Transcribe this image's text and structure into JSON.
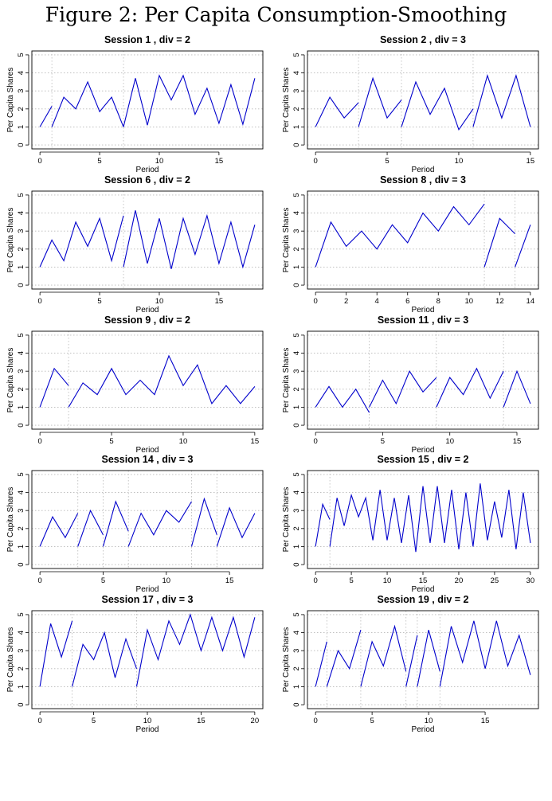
{
  "figure": {
    "title": "Figure 2: Per Capita Consumption-Smoothing"
  },
  "style": {
    "line_color": "#0000cc",
    "grid_color": "#b8b8b8"
  },
  "chart_data": [
    {
      "type": "line",
      "title": "Session 1 , div = 2",
      "xlabel": "Period",
      "ylabel": "Per Capita Shares",
      "xlim": [
        0,
        18
      ],
      "ylim": [
        0,
        5
      ],
      "xticks": [
        0,
        5,
        10,
        15
      ],
      "yticks": [
        0,
        1,
        2,
        3,
        4,
        5
      ],
      "grid_x": [
        1,
        7
      ],
      "grid": true,
      "segments": [
        [
          [
            0,
            1.0
          ],
          [
            1,
            2.15
          ]
        ],
        [
          [
            1,
            1.0
          ],
          [
            2,
            2.65
          ],
          [
            3,
            2.0
          ],
          [
            4,
            3.5
          ],
          [
            5,
            1.85
          ],
          [
            6,
            2.65
          ],
          [
            7,
            1.0
          ]
        ],
        [
          [
            7,
            1.0
          ],
          [
            8,
            3.7
          ],
          [
            9,
            1.1
          ],
          [
            10,
            3.85
          ],
          [
            11,
            2.5
          ],
          [
            12,
            3.85
          ],
          [
            13,
            1.7
          ],
          [
            14,
            3.15
          ],
          [
            15,
            1.2
          ],
          [
            16,
            3.35
          ],
          [
            17,
            1.15
          ],
          [
            18,
            3.7
          ]
        ]
      ]
    },
    {
      "type": "line",
      "title": "Session 2 , div = 3",
      "xlabel": "Period",
      "ylabel": "Per Capita Shares",
      "xlim": [
        0,
        15
      ],
      "ylim": [
        0,
        5
      ],
      "xticks": [
        0,
        5,
        10,
        15
      ],
      "yticks": [
        0,
        1,
        2,
        3,
        4,
        5
      ],
      "grid_x": [
        3,
        6,
        11
      ],
      "grid": true,
      "segments": [
        [
          [
            0,
            1.0
          ],
          [
            1,
            2.65
          ],
          [
            2,
            1.5
          ],
          [
            3,
            2.35
          ]
        ],
        [
          [
            3,
            1.0
          ],
          [
            4,
            3.7
          ],
          [
            5,
            1.5
          ],
          [
            6,
            2.5
          ]
        ],
        [
          [
            6,
            1.0
          ],
          [
            7,
            3.5
          ],
          [
            8,
            1.7
          ],
          [
            9,
            3.15
          ],
          [
            10,
            0.85
          ],
          [
            11,
            2.0
          ]
        ],
        [
          [
            11,
            1.0
          ],
          [
            12,
            3.85
          ],
          [
            13,
            1.5
          ],
          [
            14,
            3.85
          ],
          [
            15,
            1.0
          ]
        ]
      ]
    },
    {
      "type": "line",
      "title": "Session 6 , div = 2",
      "xlabel": "Period",
      "ylabel": "Per Capita Shares",
      "xlim": [
        0,
        18
      ],
      "ylim": [
        0,
        5
      ],
      "xticks": [
        0,
        5,
        10,
        15
      ],
      "yticks": [
        0,
        1,
        2,
        3,
        4,
        5
      ],
      "grid_x": [
        7
      ],
      "grid": true,
      "segments": [
        [
          [
            0,
            1.0
          ],
          [
            1,
            2.5
          ],
          [
            2,
            1.35
          ],
          [
            3,
            3.5
          ],
          [
            4,
            2.15
          ],
          [
            5,
            3.7
          ],
          [
            6,
            1.35
          ],
          [
            7,
            3.85
          ]
        ],
        [
          [
            7,
            1.0
          ],
          [
            8,
            4.15
          ],
          [
            9,
            1.2
          ],
          [
            10,
            3.7
          ],
          [
            11,
            0.9
          ],
          [
            12,
            3.7
          ],
          [
            13,
            1.7
          ],
          [
            14,
            3.85
          ],
          [
            15,
            1.2
          ],
          [
            16,
            3.5
          ],
          [
            17,
            1.0
          ],
          [
            18,
            3.35
          ]
        ]
      ]
    },
    {
      "type": "line",
      "title": "Session 8 , div = 3",
      "xlabel": "Period",
      "ylabel": "Per Capita Shares",
      "xlim": [
        0,
        14
      ],
      "ylim": [
        0,
        5
      ],
      "xticks": [
        0,
        2,
        4,
        6,
        8,
        10,
        12,
        14
      ],
      "yticks": [
        0,
        1,
        2,
        3,
        4,
        5
      ],
      "grid_x": [
        11,
        13
      ],
      "grid": true,
      "segments": [
        [
          [
            0,
            1.0
          ],
          [
            1,
            3.5
          ],
          [
            2,
            2.15
          ],
          [
            3,
            3.0
          ],
          [
            4,
            2.0
          ],
          [
            5,
            3.35
          ],
          [
            6,
            2.35
          ],
          [
            7,
            4.0
          ],
          [
            8,
            3.0
          ],
          [
            9,
            4.35
          ],
          [
            10,
            3.35
          ],
          [
            11,
            4.5
          ]
        ],
        [
          [
            11,
            1.0
          ],
          [
            12,
            3.7
          ],
          [
            13,
            2.85
          ]
        ],
        [
          [
            13,
            1.0
          ],
          [
            14,
            3.35
          ]
        ]
      ]
    },
    {
      "type": "line",
      "title": "Session 9 , div = 2",
      "xlabel": "Period",
      "ylabel": "Per Capita Shares",
      "xlim": [
        0,
        15
      ],
      "ylim": [
        0,
        5
      ],
      "xticks": [
        0,
        5,
        10,
        15
      ],
      "yticks": [
        0,
        1,
        2,
        3,
        4,
        5
      ],
      "grid_x": [
        2
      ],
      "grid": true,
      "segments": [
        [
          [
            0,
            1.0
          ],
          [
            1,
            3.15
          ],
          [
            2,
            2.2
          ]
        ],
        [
          [
            2,
            1.0
          ],
          [
            3,
            2.35
          ],
          [
            4,
            1.7
          ],
          [
            5,
            3.15
          ],
          [
            6,
            1.7
          ],
          [
            7,
            2.5
          ],
          [
            8,
            1.7
          ],
          [
            9,
            3.85
          ],
          [
            10,
            2.2
          ],
          [
            11,
            3.35
          ],
          [
            12,
            1.2
          ],
          [
            13,
            2.2
          ],
          [
            14,
            1.2
          ],
          [
            15,
            2.15
          ]
        ]
      ]
    },
    {
      "type": "line",
      "title": "Session 11 , div = 3",
      "xlabel": "Period",
      "ylabel": "Per Capita Shares",
      "xlim": [
        0,
        16
      ],
      "ylim": [
        0,
        5
      ],
      "xticks": [
        0,
        5,
        10,
        15
      ],
      "yticks": [
        0,
        1,
        2,
        3,
        4,
        5
      ],
      "grid_x": [
        4,
        9,
        14
      ],
      "grid": true,
      "segments": [
        [
          [
            0,
            1.0
          ],
          [
            1,
            2.15
          ],
          [
            2,
            1.0
          ],
          [
            3,
            2.0
          ],
          [
            4,
            0.7
          ]
        ],
        [
          [
            4,
            1.0
          ],
          [
            5,
            2.5
          ],
          [
            6,
            1.2
          ],
          [
            7,
            3.0
          ],
          [
            8,
            1.85
          ],
          [
            9,
            2.65
          ]
        ],
        [
          [
            9,
            1.0
          ],
          [
            10,
            2.65
          ],
          [
            11,
            1.7
          ],
          [
            12,
            3.15
          ],
          [
            13,
            1.5
          ],
          [
            14,
            3.0
          ]
        ],
        [
          [
            14,
            1.0
          ],
          [
            15,
            3.0
          ],
          [
            16,
            1.2
          ]
        ]
      ]
    },
    {
      "type": "line",
      "title": "Session 14 , div = 3",
      "xlabel": "Period",
      "ylabel": "Per Capita Shares",
      "xlim": [
        0,
        17
      ],
      "ylim": [
        0,
        5
      ],
      "xticks": [
        0,
        5,
        10,
        15
      ],
      "yticks": [
        0,
        1,
        2,
        3,
        4,
        5
      ],
      "grid_x": [
        3,
        5,
        7,
        12,
        14
      ],
      "grid": true,
      "segments": [
        [
          [
            0,
            1.0
          ],
          [
            1,
            2.65
          ],
          [
            2,
            1.5
          ],
          [
            3,
            2.85
          ]
        ],
        [
          [
            3,
            1.0
          ],
          [
            4,
            3.0
          ],
          [
            5,
            1.65
          ]
        ],
        [
          [
            5,
            1.0
          ],
          [
            6,
            3.5
          ],
          [
            7,
            1.85
          ]
        ],
        [
          [
            7,
            1.0
          ],
          [
            8,
            2.85
          ],
          [
            9,
            1.65
          ],
          [
            10,
            3.0
          ],
          [
            11,
            2.35
          ],
          [
            12,
            3.5
          ]
        ],
        [
          [
            12,
            1.0
          ],
          [
            13,
            3.65
          ],
          [
            14,
            1.65
          ]
        ],
        [
          [
            14,
            1.0
          ],
          [
            15,
            3.15
          ],
          [
            16,
            1.5
          ],
          [
            17,
            2.85
          ]
        ]
      ]
    },
    {
      "type": "line",
      "title": "Session 15 , div = 2",
      "xlabel": "Period",
      "ylabel": "Per Capita Shares",
      "xlim": [
        0,
        30
      ],
      "ylim": [
        0,
        5
      ],
      "xticks": [
        0,
        5,
        10,
        15,
        20,
        25,
        30
      ],
      "yticks": [
        0,
        1,
        2,
        3,
        4,
        5
      ],
      "grid_x": [
        2
      ],
      "grid": true,
      "segments": [
        [
          [
            0,
            1.0
          ],
          [
            1,
            3.35
          ],
          [
            2,
            2.5
          ]
        ],
        [
          [
            2,
            1.0
          ],
          [
            3,
            3.7
          ],
          [
            4,
            2.15
          ],
          [
            5,
            3.85
          ],
          [
            6,
            2.65
          ],
          [
            7,
            3.7
          ],
          [
            8,
            1.35
          ],
          [
            9,
            4.15
          ],
          [
            10,
            1.35
          ],
          [
            11,
            3.7
          ],
          [
            12,
            1.2
          ],
          [
            13,
            3.85
          ],
          [
            14,
            0.7
          ],
          [
            15,
            4.35
          ],
          [
            16,
            1.2
          ],
          [
            17,
            4.35
          ],
          [
            18,
            1.2
          ],
          [
            19,
            4.15
          ],
          [
            20,
            0.85
          ],
          [
            21,
            4.0
          ],
          [
            22,
            1.0
          ],
          [
            23,
            4.5
          ],
          [
            24,
            1.35
          ],
          [
            25,
            3.5
          ],
          [
            26,
            1.5
          ],
          [
            27,
            4.15
          ],
          [
            28,
            0.85
          ],
          [
            29,
            4.0
          ],
          [
            30,
            1.2
          ]
        ]
      ]
    },
    {
      "type": "line",
      "title": "Session 17 , div = 3",
      "xlabel": "Period",
      "ylabel": "Per Capita Shares",
      "xlim": [
        0,
        20
      ],
      "ylim": [
        0,
        5
      ],
      "xticks": [
        0,
        5,
        10,
        15,
        20
      ],
      "yticks": [
        0,
        1,
        2,
        3,
        4,
        5
      ],
      "grid_x": [
        3,
        9
      ],
      "grid": true,
      "segments": [
        [
          [
            0,
            1.0
          ],
          [
            1,
            4.5
          ],
          [
            2,
            2.65
          ],
          [
            3,
            4.65
          ]
        ],
        [
          [
            3,
            1.0
          ],
          [
            4,
            3.35
          ],
          [
            5,
            2.5
          ],
          [
            6,
            4.0
          ],
          [
            7,
            1.5
          ],
          [
            8,
            3.65
          ],
          [
            9,
            2.0
          ]
        ],
        [
          [
            9,
            1.0
          ],
          [
            10,
            4.15
          ],
          [
            11,
            2.5
          ],
          [
            12,
            4.65
          ],
          [
            13,
            3.35
          ],
          [
            14,
            5.0
          ],
          [
            15,
            3.0
          ],
          [
            16,
            4.85
          ],
          [
            17,
            3.0
          ],
          [
            18,
            4.85
          ],
          [
            19,
            2.65
          ],
          [
            20,
            4.85
          ]
        ]
      ]
    },
    {
      "type": "line",
      "title": "Session 19 , div = 2",
      "xlabel": "Period",
      "ylabel": "Per Capita Shares",
      "xlim": [
        0,
        19
      ],
      "ylim": [
        0,
        5
      ],
      "xticks": [
        0,
        5,
        10,
        15
      ],
      "yticks": [
        0,
        1,
        2,
        3,
        4,
        5
      ],
      "grid_x": [
        1,
        4,
        8,
        9,
        11
      ],
      "grid": true,
      "segments": [
        [
          [
            0,
            1.0
          ],
          [
            1,
            3.5
          ]
        ],
        [
          [
            1,
            1.0
          ],
          [
            2,
            3.0
          ],
          [
            3,
            2.0
          ],
          [
            4,
            4.15
          ]
        ],
        [
          [
            4,
            1.0
          ],
          [
            5,
            3.5
          ],
          [
            6,
            2.15
          ],
          [
            7,
            4.35
          ],
          [
            8,
            1.85
          ]
        ],
        [
          [
            8,
            1.0
          ],
          [
            9,
            3.85
          ]
        ],
        [
          [
            9,
            1.0
          ],
          [
            10,
            4.15
          ],
          [
            11,
            1.85
          ]
        ],
        [
          [
            11,
            1.0
          ],
          [
            12,
            4.35
          ],
          [
            13,
            2.35
          ],
          [
            14,
            4.65
          ],
          [
            15,
            2.0
          ],
          [
            16,
            4.65
          ],
          [
            17,
            2.15
          ],
          [
            18,
            3.85
          ],
          [
            19,
            1.65
          ]
        ]
      ]
    }
  ]
}
